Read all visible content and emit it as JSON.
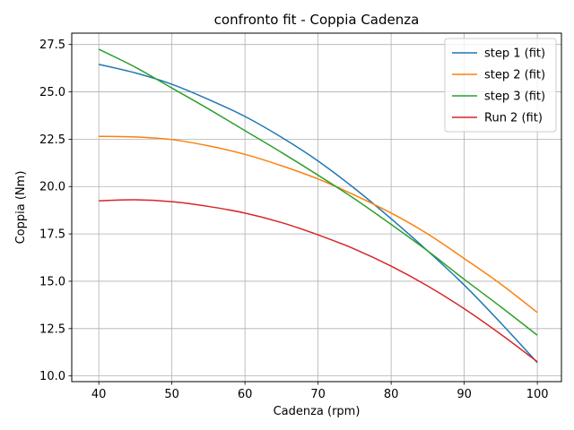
{
  "chart_data": {
    "type": "line",
    "title": "confronto fit - Coppia Cadenza",
    "xlabel": "Cadenza (rpm)",
    "ylabel": "Coppia (Nm)",
    "xlim": [
      36.3,
      103.3
    ],
    "ylim": [
      9.7,
      28.1
    ],
    "xticks": [
      40,
      50,
      60,
      70,
      80,
      90,
      100
    ],
    "yticks": [
      10.0,
      12.5,
      15.0,
      17.5,
      20.0,
      22.5,
      25.0,
      27.5
    ],
    "xtick_labels": [
      "40",
      "50",
      "60",
      "70",
      "80",
      "90",
      "100"
    ],
    "ytick_labels": [
      "10.0",
      "12.5",
      "15.0",
      "17.5",
      "20.0",
      "22.5",
      "25.0",
      "27.5"
    ],
    "grid": true,
    "legend_position": "top-right",
    "x": [
      40,
      45,
      50,
      55,
      60,
      65,
      70,
      75,
      80,
      85,
      90,
      95,
      100
    ],
    "series": [
      {
        "name": "step 1 (fit)",
        "color": "#1f77b4",
        "values": [
          26.45,
          26.0,
          25.4,
          24.6,
          23.7,
          22.6,
          21.35,
          19.9,
          18.3,
          16.6,
          14.8,
          12.8,
          10.7
        ]
      },
      {
        "name": "step 2 (fit)",
        "color": "#ff7f0e",
        "values": [
          22.65,
          22.62,
          22.48,
          22.15,
          21.7,
          21.1,
          20.4,
          19.55,
          18.6,
          17.5,
          16.2,
          14.85,
          13.35
        ]
      },
      {
        "name": "step 3 (fit)",
        "color": "#2ca02c",
        "values": [
          27.25,
          26.3,
          25.2,
          24.1,
          22.95,
          21.8,
          20.6,
          19.35,
          18.0,
          16.6,
          15.1,
          13.65,
          12.15
        ]
      },
      {
        "name": "Run 2 (fit)",
        "color": "#d62728",
        "values": [
          19.25,
          19.3,
          19.2,
          18.95,
          18.6,
          18.1,
          17.45,
          16.7,
          15.8,
          14.75,
          13.55,
          12.2,
          10.75
        ]
      }
    ]
  }
}
